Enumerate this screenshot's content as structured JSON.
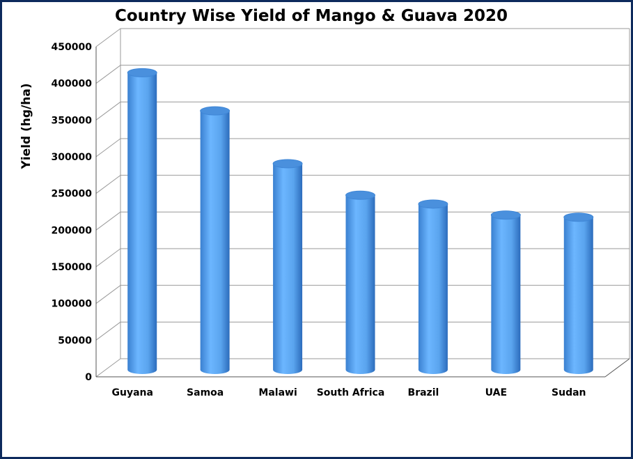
{
  "chart_data": {
    "type": "bar",
    "title": "Country Wise Yield of Mango & Guava 2020",
    "xlabel": "",
    "ylabel": "Yield (hg/ha)",
    "categories": [
      "Guyana",
      "Samoa",
      "Malawi",
      "South Africa",
      "Brazil",
      "UAE",
      "Sudan"
    ],
    "values": [
      405000,
      353000,
      281000,
      238000,
      226000,
      211000,
      208000
    ],
    "ylim": [
      0,
      450000
    ],
    "yticks": [
      "0",
      "50000",
      "100000",
      "150000",
      "200000",
      "250000",
      "300000",
      "350000",
      "400000",
      "450000"
    ],
    "grid": true,
    "legend": "none",
    "style": "3d-cylinder",
    "colors": {
      "bar": "#5aa8f0",
      "bar_dark": "#2f74c4",
      "bar_top": "#4a90dd",
      "grid": "#9a9a9a",
      "border": "#0d2a5c"
    }
  }
}
